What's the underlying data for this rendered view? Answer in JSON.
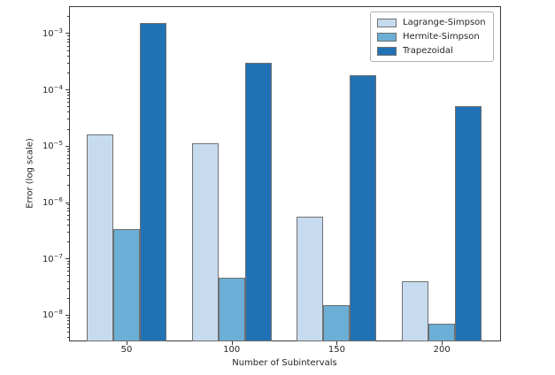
{
  "chart_data": {
    "type": "bar",
    "title": "",
    "xlabel": "Number of Subintervals",
    "ylabel": "Error (log scale)",
    "yscale": "log",
    "grid": false,
    "legend_position": "upper right",
    "categories": [
      "50",
      "100",
      "150",
      "200"
    ],
    "series": [
      {
        "name": "Lagrange-Simpson",
        "color": "#c6dbef",
        "values": [
          1.6e-05,
          1.1e-05,
          5.5e-07,
          4e-08
        ]
      },
      {
        "name": "Hermite-Simpson",
        "color": "#6baed6",
        "values": [
          3.3e-07,
          4.5e-08,
          1.5e-08,
          7e-09
        ]
      },
      {
        "name": "Trapezoidal",
        "color": "#2171b5",
        "values": [
          0.0015,
          0.0003,
          0.00018,
          5e-05
        ]
      }
    ],
    "ylim": [
      3.5e-09,
      0.003
    ],
    "y_tick_exponents": [
      -3,
      -4,
      -5,
      -6,
      -7,
      -8
    ],
    "bar_edge_color": "#707070",
    "spine_color": "#3a3a3a"
  }
}
